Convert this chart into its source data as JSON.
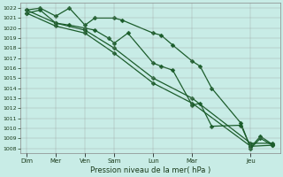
{
  "xlabel": "Pression niveau de la mer( hPa )",
  "bg_color": "#c8ece6",
  "line_color": "#1a5c2a",
  "ylim": [
    1007.5,
    1022.5
  ],
  "yticks": [
    1008,
    1009,
    1010,
    1011,
    1012,
    1013,
    1014,
    1015,
    1016,
    1017,
    1018,
    1019,
    1020,
    1021,
    1022
  ],
  "x_labels": [
    "Dim",
    "Mer",
    "Ven",
    "Sam",
    "Lun",
    "Mar",
    "Jeu"
  ],
  "x_tick_positions": [
    0,
    1.5,
    3.0,
    4.5,
    6.5,
    8.5,
    11.5
  ],
  "xlim": [
    -0.3,
    13.0
  ],
  "line1_x": [
    0.0,
    0.7,
    1.5,
    2.2,
    3.0,
    3.5,
    4.5,
    4.9,
    6.5,
    6.9,
    7.5,
    8.5,
    8.9,
    9.5,
    11.0,
    11.5,
    12.0,
    12.6
  ],
  "line1_y": [
    1021.8,
    1022.0,
    1021.2,
    1022.0,
    1020.3,
    1021.0,
    1021.0,
    1020.8,
    1019.5,
    1019.3,
    1018.3,
    1016.7,
    1016.2,
    1014.0,
    1010.5,
    1008.0,
    1009.0,
    1008.3
  ],
  "line2_x": [
    0.0,
    0.7,
    1.5,
    2.2,
    3.0,
    3.5,
    4.2,
    4.5,
    5.2,
    6.5,
    6.9,
    7.5,
    8.5,
    8.9,
    9.5,
    11.0,
    11.5,
    12.0,
    12.6
  ],
  "line2_y": [
    1021.5,
    1021.8,
    1020.5,
    1020.3,
    1020.0,
    1019.8,
    1019.0,
    1018.5,
    1019.5,
    1016.5,
    1016.2,
    1015.8,
    1012.3,
    1012.5,
    1010.2,
    1010.3,
    1008.1,
    1009.2,
    1008.4
  ],
  "line3_x": [
    0.0,
    1.5,
    3.0,
    4.5,
    6.5,
    8.5,
    11.5,
    12.6
  ],
  "line3_y": [
    1021.8,
    1020.5,
    1019.8,
    1018.0,
    1015.0,
    1013.0,
    1008.5,
    1008.5
  ],
  "line4_x": [
    0.0,
    1.5,
    3.0,
    4.5,
    6.5,
    8.5,
    11.5,
    12.6
  ],
  "line4_y": [
    1021.5,
    1020.2,
    1019.5,
    1017.5,
    1014.5,
    1012.5,
    1008.2,
    1008.3
  ],
  "marker_size": 2.5,
  "line_width": 0.9
}
